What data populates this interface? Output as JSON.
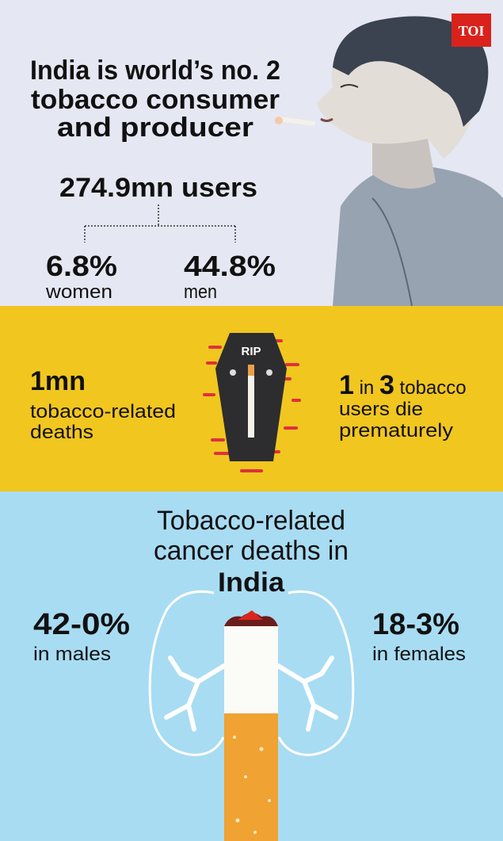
{
  "logo": "TOI",
  "header": {
    "title_lines": [
      "India is world’s no. 2",
      "tobacco consumer",
      "and producer"
    ],
    "users": "274.9mn users",
    "women": {
      "value": "6.8%",
      "label": "women"
    },
    "men": {
      "value": "44.8%",
      "label": "men"
    }
  },
  "deaths": {
    "value": "1mn",
    "label_lines": [
      "tobacco-related",
      "deaths"
    ],
    "coffin_label": "RIP",
    "ratio": {
      "first": "1",
      "joiner": "in",
      "second": "3",
      "rest_lines": [
        "tobacco",
        "users die",
        "prematurely"
      ]
    }
  },
  "cancer": {
    "title_lines": [
      "Tobacco-related",
      "cancer deaths in"
    ],
    "title_country": "India",
    "males": {
      "value": "42-0%",
      "label": "in males"
    },
    "females": {
      "value": "18-3%",
      "label": "in females"
    }
  }
}
